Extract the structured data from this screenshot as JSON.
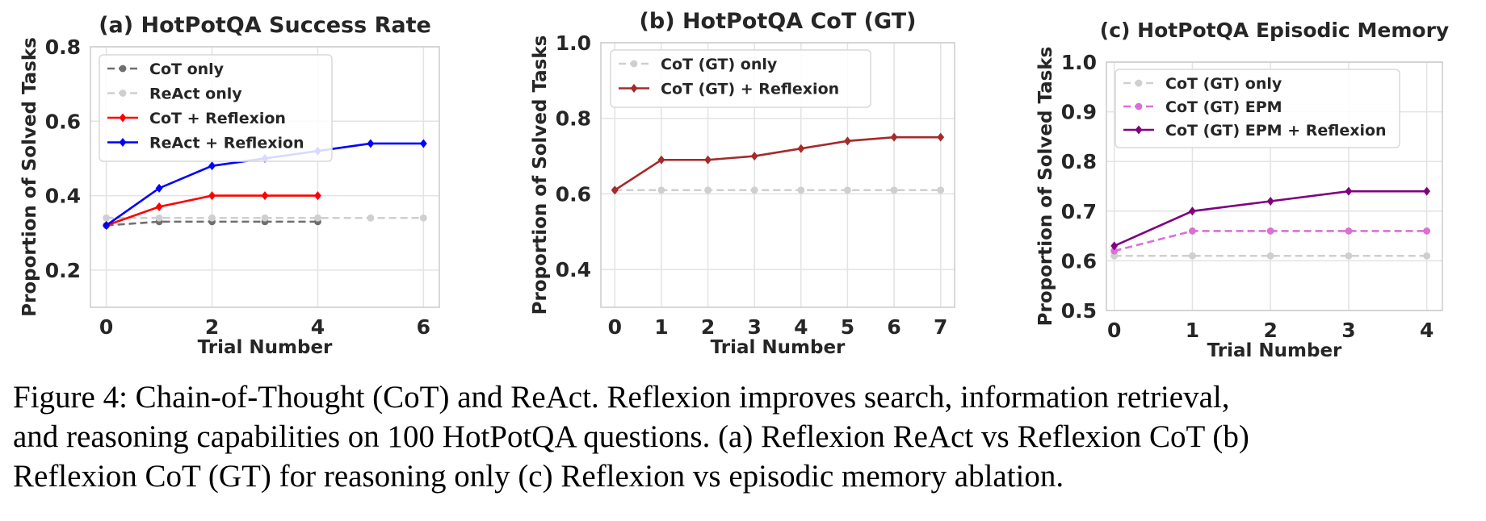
{
  "chart_data": [
    {
      "type": "line",
      "title": "(a) HotPotQA Success Rate",
      "xlabel": "Trial Number",
      "ylabel": "Proportion of Solved Tasks",
      "xlim": [
        -0.3,
        6.3
      ],
      "ylim": [
        0.1,
        0.8
      ],
      "xticks": [
        0,
        2,
        4,
        6
      ],
      "yticks": [
        0.2,
        0.4,
        0.6,
        0.8
      ],
      "grid": true,
      "legend": "top-left",
      "series": [
        {
          "name": "CoT only",
          "color": "#6f6f6f",
          "dashed": true,
          "marker": "circle",
          "x": [
            0,
            1,
            2,
            3,
            4
          ],
          "values": [
            0.32,
            0.33,
            0.33,
            0.33,
            0.33
          ]
        },
        {
          "name": "ReAct only",
          "color": "#cfcfcf",
          "dashed": true,
          "marker": "circle",
          "x": [
            0,
            1,
            2,
            3,
            4,
            5,
            6
          ],
          "values": [
            0.34,
            0.34,
            0.34,
            0.34,
            0.34,
            0.34,
            0.34
          ]
        },
        {
          "name": "CoT + Reflexion",
          "color": "#ff0000",
          "dashed": false,
          "marker": "diamond",
          "x": [
            0,
            1,
            2,
            3,
            4
          ],
          "values": [
            0.32,
            0.37,
            0.4,
            0.4,
            0.4
          ]
        },
        {
          "name": "ReAct + Reflexion",
          "color": "#0000ff",
          "dashed": false,
          "marker": "diamond",
          "x": [
            0,
            1,
            2,
            3,
            4,
            5,
            6
          ],
          "values": [
            0.32,
            0.42,
            0.48,
            0.5,
            0.52,
            0.54,
            0.54
          ]
        }
      ]
    },
    {
      "type": "line",
      "title": "(b) HotPotQA CoT (GT)",
      "xlabel": "Trial Number",
      "ylabel": "Proportion of Solved Tasks",
      "xlim": [
        -0.3,
        7.3
      ],
      "ylim": [
        0.3,
        1.0
      ],
      "xticks": [
        0,
        1,
        2,
        3,
        4,
        5,
        6,
        7
      ],
      "yticks": [
        0.4,
        0.6,
        0.8,
        1.0
      ],
      "grid": true,
      "legend": "top-left",
      "series": [
        {
          "name": "CoT (GT) only",
          "color": "#cfcfcf",
          "dashed": true,
          "marker": "circle",
          "x": [
            0,
            1,
            2,
            3,
            4,
            5,
            6,
            7
          ],
          "values": [
            0.61,
            0.61,
            0.61,
            0.61,
            0.61,
            0.61,
            0.61,
            0.61
          ]
        },
        {
          "name": "CoT (GT) + Reflexion",
          "color": "#a52a2a",
          "dashed": false,
          "marker": "diamond",
          "x": [
            0,
            1,
            2,
            3,
            4,
            5,
            6,
            7
          ],
          "values": [
            0.61,
            0.69,
            0.69,
            0.7,
            0.72,
            0.74,
            0.75,
            0.75
          ]
        }
      ]
    },
    {
      "type": "line",
      "title": "(c) HotPotQA Episodic Memory",
      "xlabel": "Trial Number",
      "ylabel": "Proportion of Solved Tasks",
      "xlim": [
        -0.1,
        4.2
      ],
      "ylim": [
        0.5,
        1.0
      ],
      "xticks": [
        0,
        1,
        2,
        3,
        4
      ],
      "yticks": [
        0.5,
        0.6,
        0.7,
        0.8,
        0.9,
        1.0
      ],
      "grid": true,
      "legend": "top-left",
      "series": [
        {
          "name": "CoT (GT) only",
          "color": "#cfcfcf",
          "dashed": true,
          "marker": "circle",
          "x": [
            0,
            1,
            2,
            3,
            4
          ],
          "values": [
            0.61,
            0.61,
            0.61,
            0.61,
            0.61
          ]
        },
        {
          "name": "CoT (GT) EPM",
          "color": "#da70d6",
          "dashed": true,
          "marker": "circle",
          "x": [
            0,
            1,
            2,
            3,
            4
          ],
          "values": [
            0.62,
            0.66,
            0.66,
            0.66,
            0.66
          ]
        },
        {
          "name": "CoT (GT) EPM + Reflexion",
          "color": "#800080",
          "dashed": false,
          "marker": "diamond",
          "x": [
            0,
            1,
            2,
            3,
            4
          ],
          "values": [
            0.63,
            0.7,
            0.72,
            0.74,
            0.74
          ]
        }
      ]
    }
  ],
  "caption": {
    "line1": "Figure 4: Chain-of-Thought (CoT) and ReAct. Reflexion improves search, information retrieval,",
    "line2": "and reasoning capabilities on 100 HotPotQA questions. (a) Reflexion ReAct vs Reflexion CoT (b)",
    "line3": "Reflexion CoT (GT) for reasoning only (c) Reflexion vs episodic memory ablation."
  }
}
